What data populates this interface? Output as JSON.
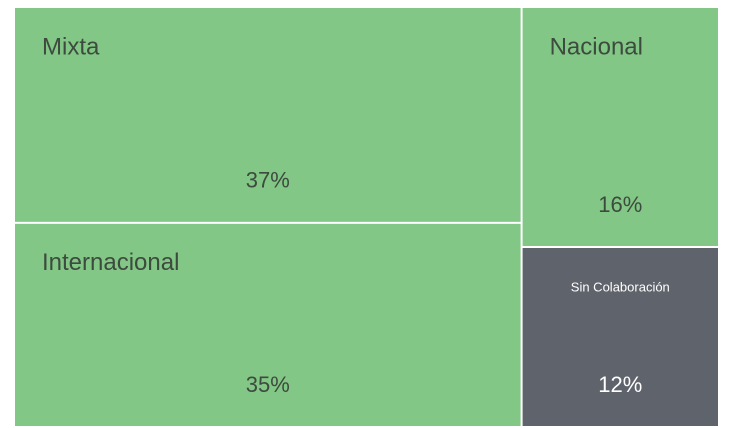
{
  "chart_data": {
    "type": "treemap",
    "categories": [
      "Mixta",
      "Internacional",
      "Nacional",
      "Sin Colaboración"
    ],
    "values": [
      37,
      35,
      16,
      12
    ],
    "value_labels": [
      "37%",
      "35%",
      "16%",
      "12%"
    ],
    "colors": [
      "#82c785",
      "#82c785",
      "#82c785",
      "#5f636b"
    ]
  }
}
